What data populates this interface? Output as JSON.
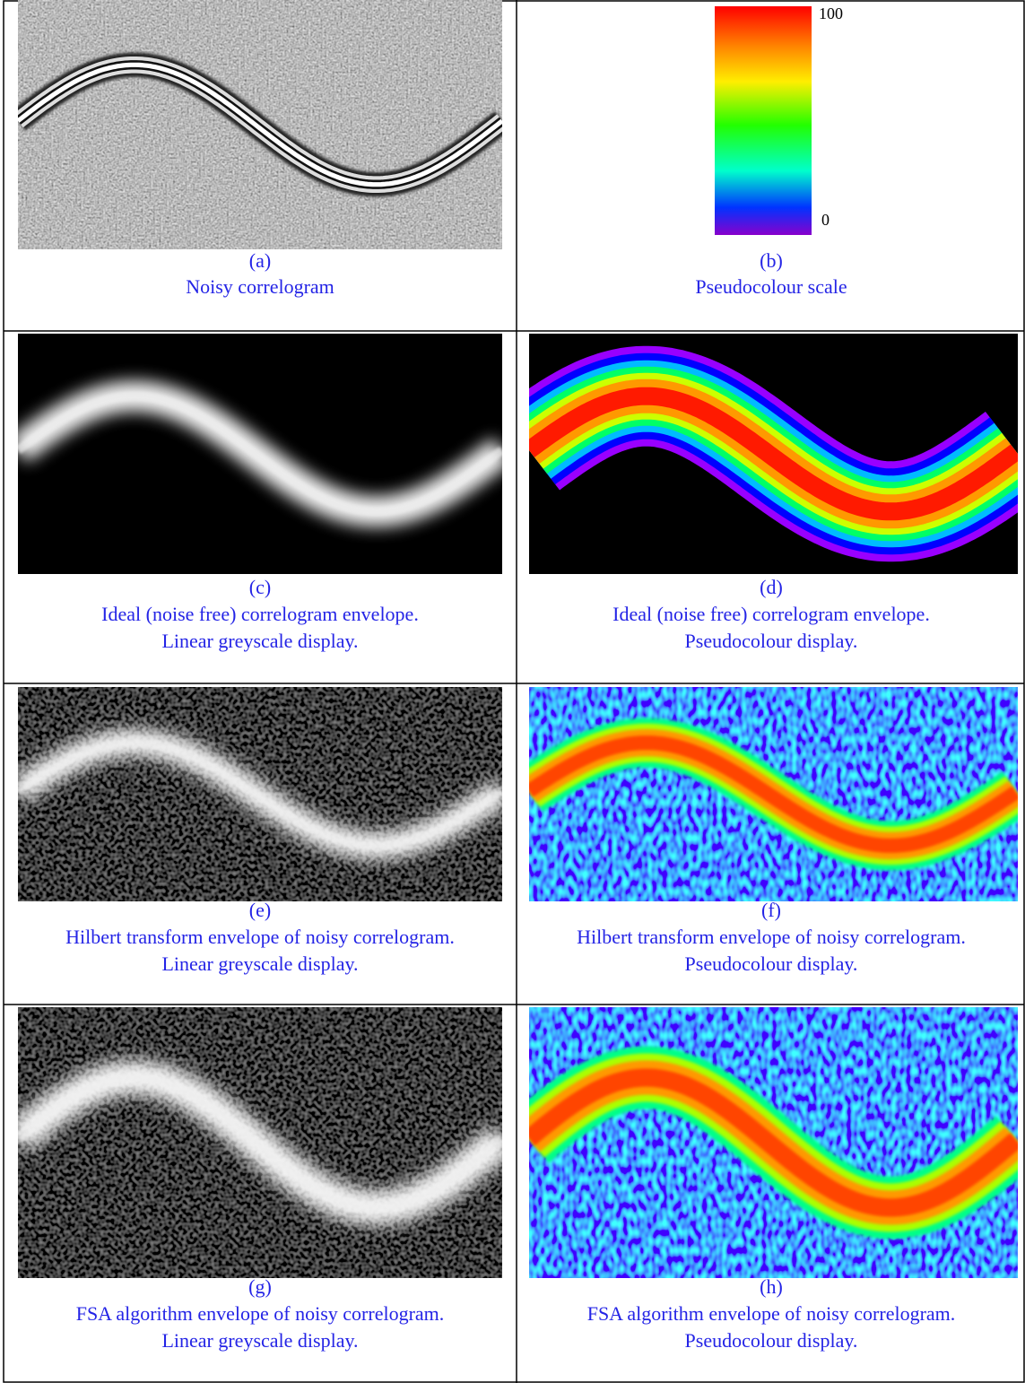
{
  "cells": [
    {
      "label": "(a)",
      "caption": [
        "Noisy correlogram"
      ]
    },
    {
      "label": "(b)",
      "caption": [
        "Pseudocolour scale"
      ]
    },
    {
      "label": "(c)",
      "caption": [
        "Ideal (noise free) correlogram envelope.",
        "Linear greyscale display."
      ]
    },
    {
      "label": "(d)",
      "caption": [
        "Ideal (noise free) correlogram envelope.",
        "Pseudocolour display."
      ]
    },
    {
      "label": "(e)",
      "caption": [
        "Hilbert transform envelope of noisy correlogram.",
        "Linear greyscale display."
      ]
    },
    {
      "label": "(f)",
      "caption": [
        "Hilbert transform envelope of noisy correlogram.",
        "Pseudocolour display."
      ]
    },
    {
      "label": "(g)",
      "caption": [
        "FSA algorithm envelope of noisy correlogram.",
        "Linear greyscale display."
      ]
    },
    {
      "label": "(h)",
      "caption": [
        "FSA algorithm envelope of noisy correlogram.",
        "Pseudocolour display."
      ]
    }
  ],
  "colour_scale": {
    "max": 100,
    "min": 0
  }
}
